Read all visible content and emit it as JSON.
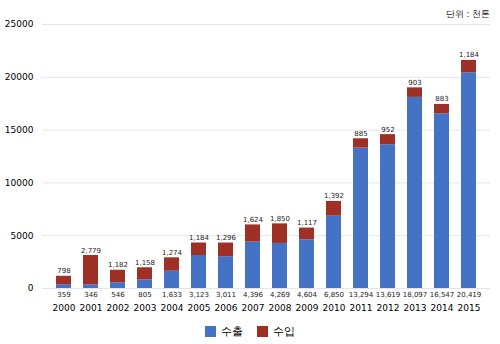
{
  "chart_data": {
    "type": "bar",
    "stacked": true,
    "categories": [
      "2000",
      "2001",
      "2002",
      "2003",
      "2004",
      "2005",
      "2006",
      "2007",
      "2008",
      "2009",
      "2010",
      "2011",
      "2012",
      "2013",
      "2014",
      "2015"
    ],
    "series": [
      {
        "name": "수출",
        "color": "#4472C4",
        "values": [
          359,
          346,
          546,
          805,
          1633,
          3123,
          3011,
          4396,
          4269,
          4604,
          6850,
          13294,
          13619,
          18097,
          16547,
          20419
        ],
        "value_labels": [
          "359",
          "346",
          "546",
          "805",
          "1,633",
          "3,123",
          "3,011",
          "4,396",
          "4,269",
          "4,604",
          "6,850",
          "13,294",
          "13,619",
          "18,097",
          "16,547",
          "20,419"
        ]
      },
      {
        "name": "수입",
        "color": "#9E3025",
        "values": [
          798,
          2779,
          1182,
          1158,
          1274,
          1184,
          1296,
          1624,
          1850,
          1117,
          1392,
          885,
          952,
          903,
          883,
          1184
        ],
        "value_labels": [
          "798",
          "2,779",
          "1,182",
          "1,158",
          "1,274",
          "1,184",
          "1,296",
          "1,624",
          "1,850",
          "1,117",
          "1,392",
          "885",
          "952",
          "903",
          "883",
          "1,184"
        ]
      }
    ],
    "ylim": [
      0,
      25000
    ],
    "yticks": [
      0,
      5000,
      10000,
      15000,
      20000,
      25000
    ],
    "grid": true,
    "legend": "bottom",
    "data_labels": true,
    "annotations": [
      "단위 : 천톤"
    ]
  }
}
